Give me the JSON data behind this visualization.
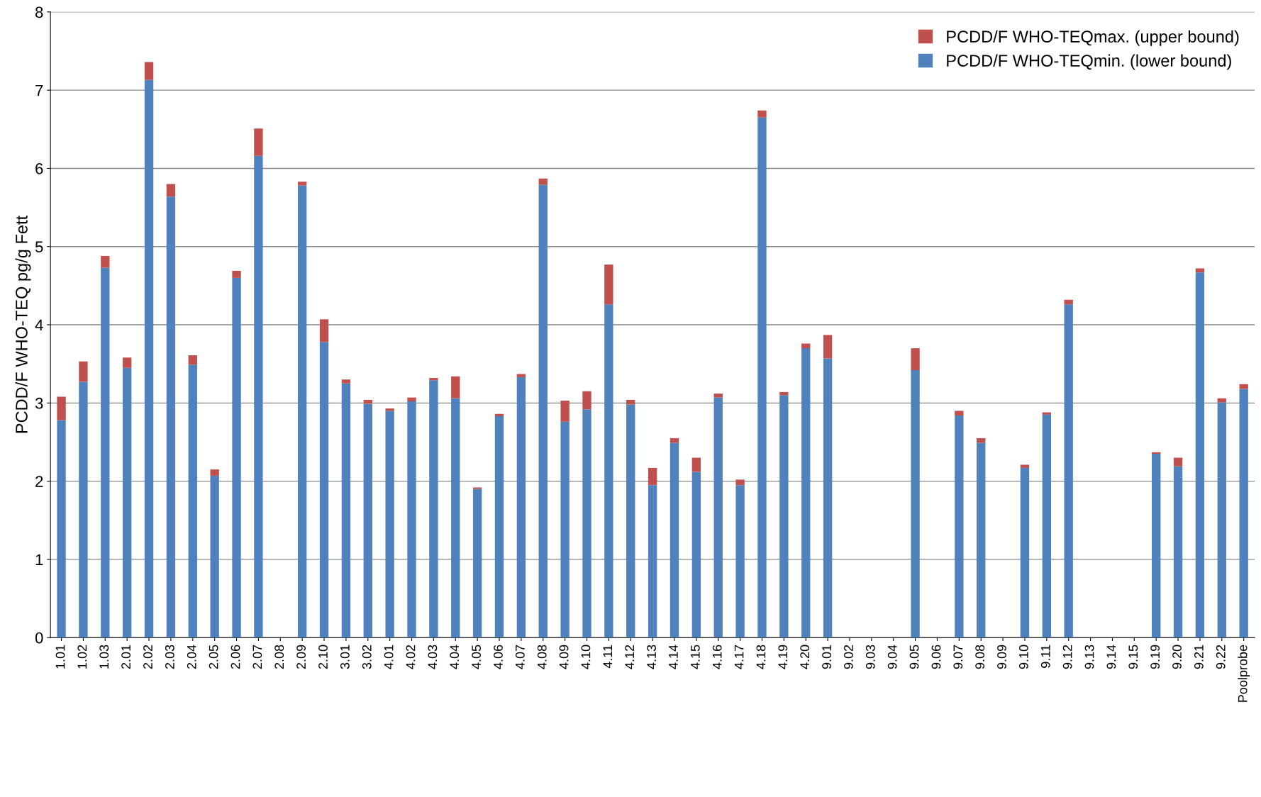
{
  "chart_data": {
    "type": "bar",
    "stacked": true,
    "ylabel": "PCDD/F WHO-TEQ pg/g Fett",
    "categories": [
      "1.01",
      "1.02",
      "1.03",
      "2.01",
      "2.02",
      "2.03",
      "2.04",
      "2.05",
      "2.06",
      "2.07",
      "2.08",
      "2.09",
      "2.10",
      "3.01",
      "3.02",
      "4.01",
      "4.02",
      "4.03",
      "4.04",
      "4.05",
      "4.06",
      "4.07",
      "4.08",
      "4.09",
      "4.10",
      "4.11",
      "4.12",
      "4.13",
      "4.14",
      "4.15",
      "4.16",
      "4.17",
      "4.18",
      "4.19",
      "4.20",
      "9.01",
      "9.02",
      "9.03",
      "9.04",
      "9.05",
      "9.06",
      "9.07",
      "9.08",
      "9.09",
      "9.10",
      "9.11",
      "9.12",
      "9.13",
      "9.14",
      "9.15",
      "9.19",
      "9.20",
      "9.21",
      "9.22",
      "Poolprobe"
    ],
    "series": [
      {
        "name": "PCDD/F WHO-TEQmin. (lower bound)",
        "color": "#4f81bd",
        "values": [
          2.78,
          3.27,
          4.73,
          3.45,
          7.13,
          5.64,
          3.49,
          2.07,
          4.6,
          6.16,
          null,
          5.78,
          3.78,
          3.25,
          2.99,
          2.9,
          3.02,
          3.29,
          3.06,
          1.9,
          2.83,
          3.33,
          5.79,
          2.76,
          2.92,
          4.26,
          2.98,
          1.95,
          2.49,
          2.12,
          3.07,
          1.95,
          6.65,
          3.1,
          3.7,
          3.57,
          null,
          null,
          null,
          3.42,
          null,
          2.84,
          2.49,
          null,
          2.17,
          2.85,
          4.26,
          null,
          null,
          null,
          2.35,
          2.19,
          4.67,
          3.01,
          3.18
        ]
      },
      {
        "name": "PCDD/F WHO-TEQmax. (upper bound)",
        "color": "#c0504d",
        "values": [
          0.3,
          0.26,
          0.15,
          0.13,
          0.23,
          0.16,
          0.12,
          0.08,
          0.09,
          0.35,
          null,
          0.05,
          0.29,
          0.05,
          0.05,
          0.03,
          0.05,
          0.03,
          0.28,
          0.02,
          0.03,
          0.04,
          0.08,
          0.27,
          0.23,
          0.51,
          0.06,
          0.22,
          0.06,
          0.18,
          0.05,
          0.07,
          0.09,
          0.04,
          0.06,
          0.3,
          null,
          null,
          null,
          0.28,
          null,
          0.06,
          0.06,
          null,
          0.04,
          0.03,
          0.06,
          null,
          null,
          null,
          0.02,
          0.11,
          0.05,
          0.05,
          0.06
        ]
      }
    ],
    "ylim": [
      0,
      8
    ],
    "yticks": [
      0,
      1,
      2,
      3,
      4,
      5,
      6,
      7,
      8
    ],
    "grid": "y",
    "legend": "top right"
  }
}
